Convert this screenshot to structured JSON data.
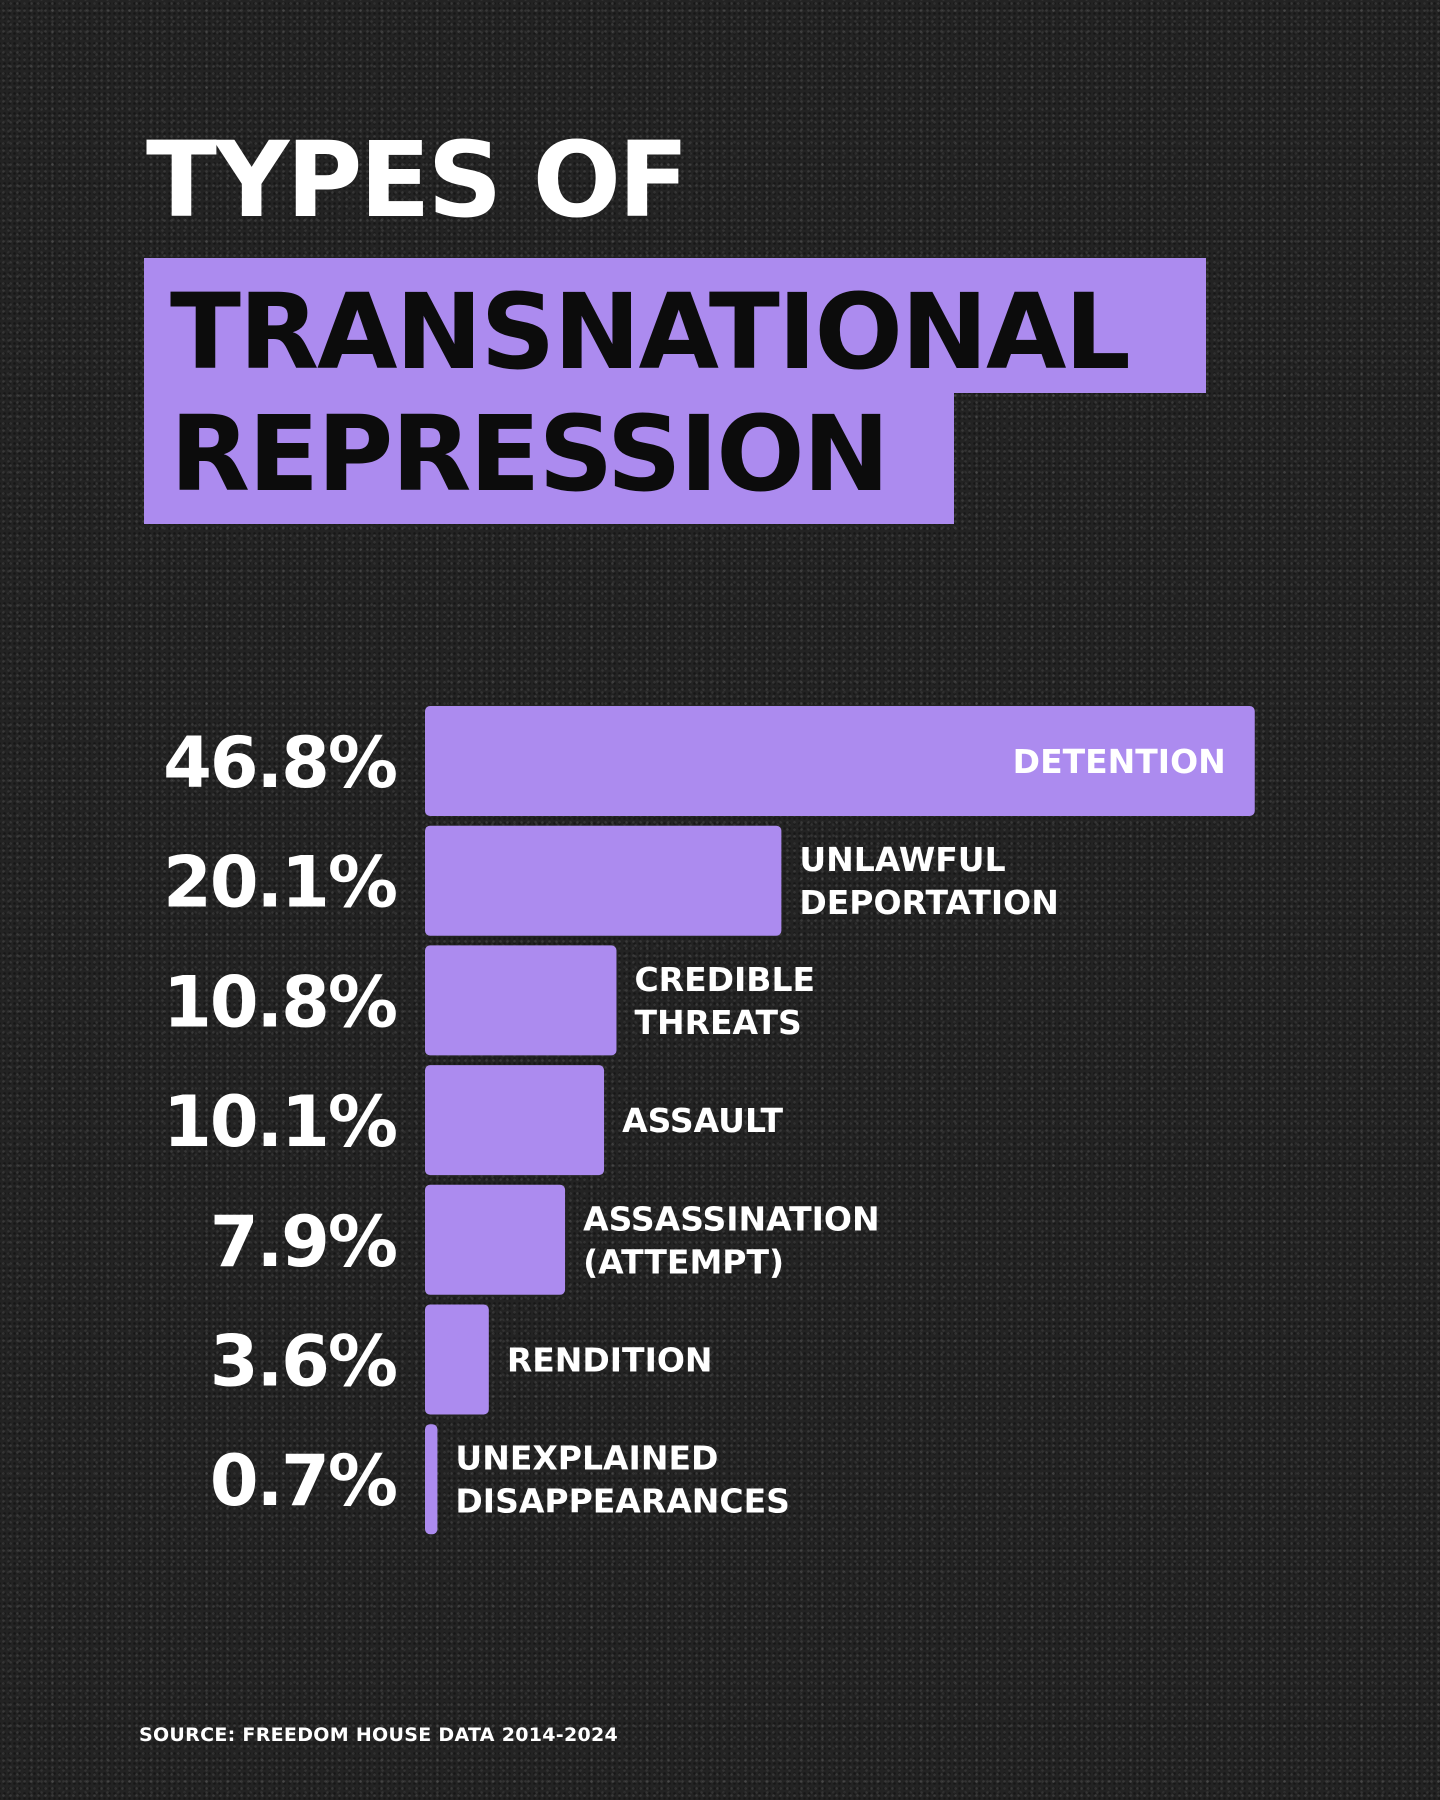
{
  "title": {
    "line1": "TYPES OF",
    "line2": "TRANSNATIONAL",
    "line3": "REPRESSION"
  },
  "colors": {
    "background": "#232323",
    "accent": "#ac8bef",
    "text": "#ffffff",
    "title_dark": "#0c0c0c"
  },
  "chart_data": {
    "type": "bar",
    "orientation": "horizontal",
    "categories": [
      [
        "DETENTION"
      ],
      [
        "UNLAWFUL",
        "DEPORTATION"
      ],
      [
        "CREDIBLE",
        "THREATS"
      ],
      [
        "ASSAULT"
      ],
      [
        "ASSASSINATION",
        "(ATTEMPT)"
      ],
      [
        "RENDITION"
      ],
      [
        "UNEXPLAINED",
        "DISAPPEARANCES"
      ]
    ],
    "values": [
      46.8,
      20.1,
      10.8,
      10.1,
      7.9,
      3.6,
      0.7
    ],
    "value_labels": [
      "46.8%",
      "20.1%",
      "10.8%",
      "10.1%",
      "7.9%",
      "3.6%",
      "0.7%"
    ],
    "unit": "%",
    "grid": false,
    "legend": "none"
  },
  "source": "SOURCE: FREEDOM HOUSE DATA 2014-2024"
}
